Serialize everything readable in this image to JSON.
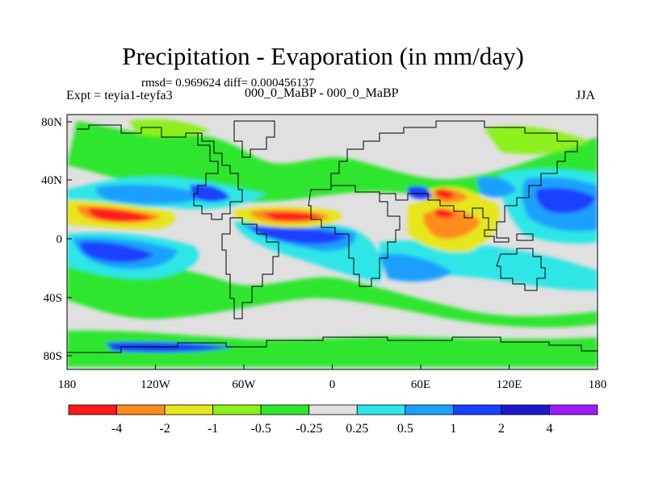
{
  "title": "Precipitation - Evaporation (in mm/day)",
  "rmsd_line": "rmsd= 0.969624 diff= 0.000456137",
  "expt_label": "Expt = teyia1-teyfa3",
  "subtitle": "000_0_MaBP - 000_0_MaBP",
  "season": "JJA",
  "x_ticks": [
    "180",
    "120W",
    "60W",
    "0",
    "60E",
    "120E",
    "180"
  ],
  "y_ticks": [
    "80N",
    "40N",
    "0",
    "40S",
    "80S"
  ],
  "colorbar": {
    "labels": [
      "-4",
      "-2",
      "-1",
      "-0.5",
      "-0.25",
      "0.25",
      "0.5",
      "1",
      "2",
      "4"
    ],
    "colors": [
      "#ff1a1a",
      "#ff8c1a",
      "#e6e61a",
      "#8cf01a",
      "#2ee62e",
      "#e0e0e0",
      "#2ee6e6",
      "#1aa0ff",
      "#1a40ff",
      "#1a1acc",
      "#a01aff",
      "#8020e0"
    ]
  },
  "map": {
    "background": "#e0e0e0",
    "coastline_color": "#000000"
  }
}
